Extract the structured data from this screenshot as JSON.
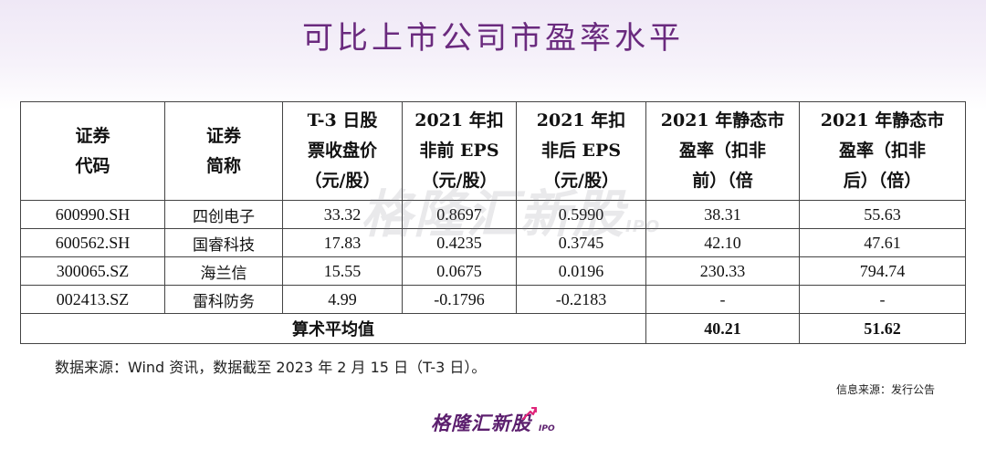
{
  "title": "可比上市公司市盈率水平",
  "table": {
    "headers": [
      [
        "证券",
        "代码"
      ],
      [
        "证券",
        "简称"
      ],
      [
        "T-3 日股",
        "票收盘价",
        "（元/股）"
      ],
      [
        "2021 年扣",
        "非前 EPS",
        "（元/股）"
      ],
      [
        "2021 年扣",
        "非后 EPS",
        "（元/股）"
      ],
      [
        "2021 年静态市",
        "盈率（扣非",
        "前）（倍"
      ],
      [
        "2021 年静态市",
        "盈率（扣非",
        "后）（倍）"
      ]
    ],
    "rows": [
      [
        "600990.SH",
        "四创电子",
        "33.32",
        "0.8697",
        "0.5990",
        "38.31",
        "55.63"
      ],
      [
        "600562.SH",
        "国睿科技",
        "17.83",
        "0.4235",
        "0.3745",
        "42.10",
        "47.61"
      ],
      [
        "300065.SZ",
        "海兰信",
        "15.55",
        "0.0675",
        "0.0196",
        "230.33",
        "794.74"
      ],
      [
        "002413.SZ",
        "雷科防务",
        "4.99",
        "-0.1796",
        "-0.2183",
        "-",
        "-"
      ]
    ],
    "average": {
      "label": "算术平均值",
      "pe_before": "40.21",
      "pe_after": "51.62"
    }
  },
  "note": "数据来源：Wind 资讯，数据截至 2023 年 2 月 15 日（T-3 日）。",
  "source": "信息来源：发行公告",
  "watermark": {
    "brand": "格隆汇新股",
    "ipo": "IPO"
  },
  "logo": {
    "brand": "格隆汇新股",
    "ipo": "IPO"
  },
  "colors": {
    "title": "#6a2a7e",
    "logo": "#5c1f6e",
    "arrow": "#e0257a"
  }
}
